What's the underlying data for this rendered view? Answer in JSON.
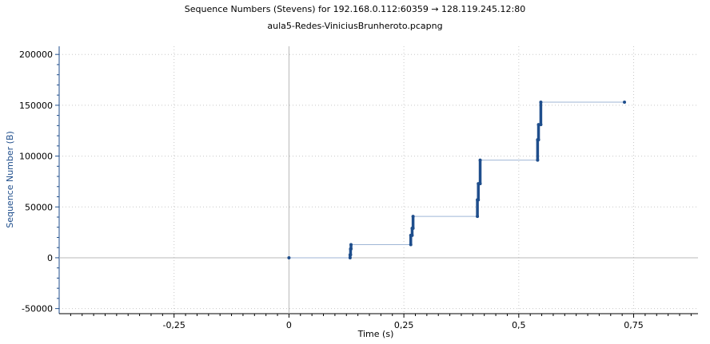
{
  "chart_data": {
    "type": "line",
    "title": "Sequence Numbers (Stevens) for 192.168.0.112:60359 → 128.119.245.12:80",
    "subtitle": "aula5-Redes-ViniciusBrunheroto.pcapng",
    "xlabel": "Time (s)",
    "ylabel": "Sequence Number (B)",
    "xlim": [
      -0.5,
      0.89
    ],
    "ylim": [
      -55000,
      208000
    ],
    "grid": true,
    "x_ticks": [
      -0.25,
      0,
      0.25,
      0.5,
      0.75
    ],
    "x_tick_labels": [
      "-0,25",
      "0",
      "0,25",
      "0,5",
      "0,75"
    ],
    "y_ticks": [
      -50000,
      0,
      50000,
      100000,
      150000,
      200000
    ],
    "y_tick_labels": [
      "-50000",
      "0",
      "50000",
      "100000",
      "150000",
      "200000"
    ],
    "series": [
      {
        "color": "#1f4e8c",
        "line_color": "#9fb6d6",
        "x": [
          0,
          0.133,
          0.133,
          0.134,
          0.134,
          0.135,
          0.135,
          0.265,
          0.265,
          0.268,
          0.268,
          0.27,
          0.27,
          0.41,
          0.41,
          0.412,
          0.412,
          0.416,
          0.416,
          0.541,
          0.541,
          0.543,
          0.543,
          0.548,
          0.548,
          0.73
        ],
        "y": [
          0,
          0,
          2900,
          2900,
          8700,
          8700,
          12900,
          12900,
          22000,
          22000,
          29000,
          29000,
          40700,
          40700,
          57000,
          57000,
          72900,
          72900,
          96000,
          96000,
          116000,
          116000,
          131000,
          131000,
          153000,
          153000
        ]
      }
    ],
    "colors": {
      "data": "#1f4e8c",
      "connector": "#9fb6d6",
      "axis_text": "#1f4e8c",
      "grid": "#c8c8c8"
    }
  }
}
